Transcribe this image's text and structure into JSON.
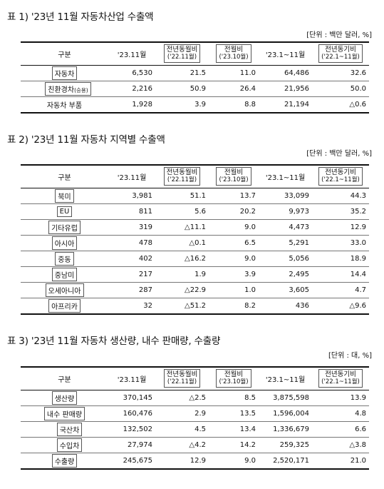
{
  "tables": [
    {
      "title": "표 1) '23년 11월 자동차산업 수출액",
      "unit": "[단위 : 백만 달러, %]",
      "headers": {
        "c0": "구분",
        "c1": "'23.11월",
        "c2_main": "전년동월비",
        "c2_sub": "('22.11월)",
        "c3_main": "전월비",
        "c3_sub": "('23.10월)",
        "c4": "'23.1~11월",
        "c5_main": "전년동기비",
        "c5_sub": "('22.1~11월)"
      },
      "rows": [
        {
          "label": "자동차",
          "v1": "6,530",
          "v2": "21.5",
          "v3": "11.0",
          "v4": "64,486",
          "v5": "32.6"
        },
        {
          "label": "친환경차",
          "label_small": "(승용)",
          "v1": "2,216",
          "v2": "50.9",
          "v3": "26.4",
          "v4": "21,956",
          "v5": "50.0"
        },
        {
          "label": "자동차 부품",
          "v1": "1,928",
          "v2": "3.9",
          "v3": "8.8",
          "v4": "21,194",
          "v5": "△0.6"
        }
      ]
    },
    {
      "title": "표 2) '23년 11월 자동차 지역별 수출액",
      "unit": "[단위 : 백만 달러, %]",
      "headers": {
        "c0": "구분",
        "c1": "'23.11월",
        "c2_main": "전년동월비",
        "c2_sub": "('22.11월)",
        "c3_main": "전월비",
        "c3_sub": "('23.10월)",
        "c4": "'23.1~11월",
        "c5_main": "전년동기비",
        "c5_sub": "('22.1~11월)"
      },
      "rows": [
        {
          "label": "북미",
          "v1": "3,981",
          "v2": "51.1",
          "v3": "13.7",
          "v4": "33,099",
          "v5": "44.3"
        },
        {
          "label": "EU",
          "v1": "811",
          "v2": "5.6",
          "v3": "20.2",
          "v4": "9,973",
          "v5": "35.2"
        },
        {
          "label": "기타유럽",
          "v1": "319",
          "v2": "△11.1",
          "v3": "9.0",
          "v4": "4,473",
          "v5": "12.9"
        },
        {
          "label": "아시아",
          "v1": "478",
          "v2": "△0.1",
          "v3": "6.5",
          "v4": "5,291",
          "v5": "33.0"
        },
        {
          "label": "중동",
          "v1": "402",
          "v2": "△16.2",
          "v3": "9.0",
          "v4": "5,056",
          "v5": "18.9"
        },
        {
          "label": "중남미",
          "v1": "217",
          "v2": "1.9",
          "v3": "3.9",
          "v4": "2,495",
          "v5": "14.4"
        },
        {
          "label": "오세아니아",
          "v1": "287",
          "v2": "△22.9",
          "v3": "1.0",
          "v4": "3,605",
          "v5": "4.7"
        },
        {
          "label": "아프리카",
          "v1": "32",
          "v2": "△51.2",
          "v3": "8.2",
          "v4": "436",
          "v5": "△9.6"
        }
      ]
    },
    {
      "title": "표 3) '23년 11월 자동차 생산량, 내수 판매량, 수출량",
      "unit": "[단위 : 대, %]",
      "headers": {
        "c0": "구분",
        "c1": "'23.11월",
        "c2_main": "전년동월비",
        "c2_sub": "('22.11월)",
        "c3_main": "전월비",
        "c3_sub": "('23.10월)",
        "c4": "'23.1~11월",
        "c5_main": "전년동기비",
        "c5_sub": "('22.1~11월)"
      },
      "rows": [
        {
          "label": "생산량",
          "v1": "370,145",
          "v2": "△2.5",
          "v3": "8.5",
          "v4": "3,875,598",
          "v5": "13.9"
        },
        {
          "label": "내수 판매량",
          "v1": "160,476",
          "v2": "2.9",
          "v3": "13.5",
          "v4": "1,596,004",
          "v5": "4.8"
        },
        {
          "label": "국산차",
          "v1": "132,502",
          "v2": "4.5",
          "v3": "13.4",
          "v4": "1,336,679",
          "v5": "6.6"
        },
        {
          "label": "수입차",
          "v1": "27,974",
          "v2": "△4.2",
          "v3": "14.2",
          "v4": "259,325",
          "v5": "△3.8"
        },
        {
          "label": "수출량",
          "v1": "245,675",
          "v2": "12.9",
          "v3": "9.0",
          "v4": "2,520,171",
          "v5": "21.0"
        }
      ]
    }
  ]
}
